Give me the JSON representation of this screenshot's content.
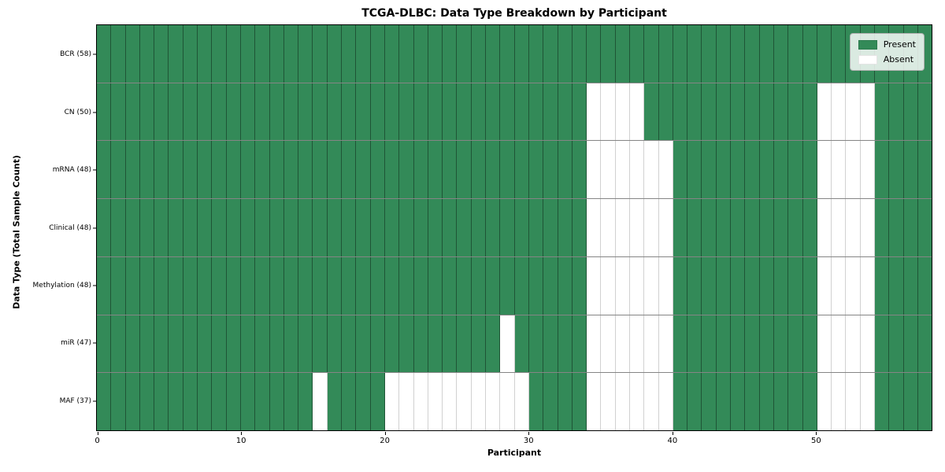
{
  "chart_data": {
    "type": "heatmap",
    "title": "TCGA-DLBC: Data Type Breakdown by Participant",
    "xlabel": "Participant",
    "ylabel": "Data Type (Total Sample Count)",
    "n_participants": 58,
    "x_ticks": [
      0,
      10,
      20,
      30,
      40,
      50
    ],
    "xlim": [
      0,
      58
    ],
    "grid": true,
    "legend_position": "top-right",
    "colors": {
      "present": "#338a58",
      "absent": "#ffffff",
      "cell_border": "rgba(0,0,0,0.38)",
      "plot_border": "#000000"
    },
    "legend": [
      {
        "label": "Present",
        "color": "#338a58"
      },
      {
        "label": "Absent",
        "color": "#ffffff"
      }
    ],
    "rows": [
      {
        "label": "BCR (58)",
        "data_type": "BCR",
        "total": 58,
        "absent_participants": []
      },
      {
        "label": "CN (50)",
        "data_type": "CN",
        "total": 50,
        "absent_participants": [
          34,
          35,
          36,
          37,
          50,
          51,
          52,
          53
        ]
      },
      {
        "label": "mRNA (48)",
        "data_type": "mRNA",
        "total": 48,
        "absent_participants": [
          34,
          35,
          36,
          37,
          38,
          39,
          50,
          51,
          52,
          53
        ]
      },
      {
        "label": "Clinical (48)",
        "data_type": "Clinical",
        "total": 48,
        "absent_participants": [
          34,
          35,
          36,
          37,
          38,
          39,
          50,
          51,
          52,
          53
        ]
      },
      {
        "label": "Methylation (48)",
        "data_type": "Methylation",
        "total": 48,
        "absent_participants": [
          34,
          35,
          36,
          37,
          38,
          39,
          50,
          51,
          52,
          53
        ]
      },
      {
        "label": "miR (47)",
        "data_type": "miR",
        "total": 47,
        "absent_participants": [
          28,
          34,
          35,
          36,
          37,
          38,
          39,
          50,
          51,
          52,
          53
        ]
      },
      {
        "label": "MAF (37)",
        "data_type": "MAF",
        "total": 37,
        "absent_participants": [
          15,
          20,
          21,
          22,
          23,
          24,
          25,
          26,
          27,
          28,
          29,
          34,
          35,
          36,
          37,
          38,
          39,
          50,
          51,
          52,
          53
        ]
      }
    ]
  }
}
